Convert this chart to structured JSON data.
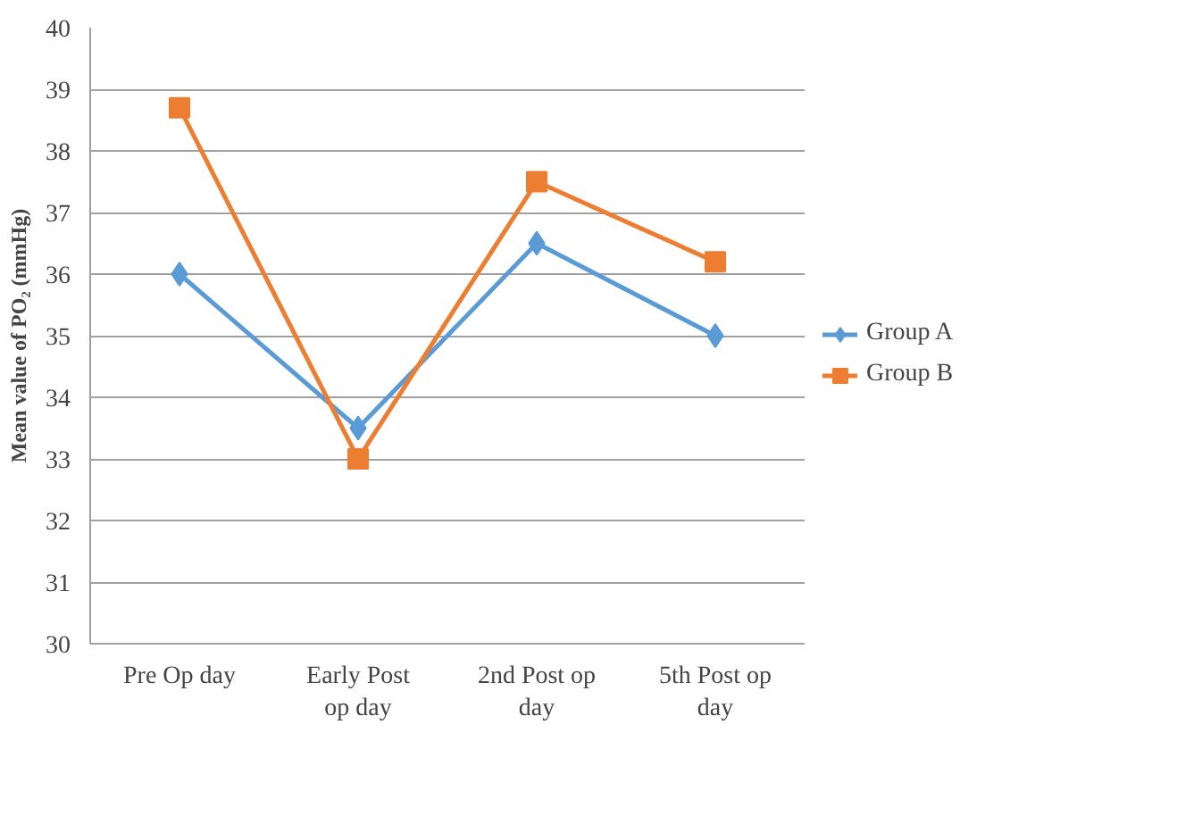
{
  "chart_data": {
    "type": "line",
    "ylabel": "Mean value of PO₂ (mmHg)",
    "categories": [
      "Pre Op day",
      "Early Post op day",
      "2nd Post op day",
      "5th Post op day"
    ],
    "series": [
      {
        "name": "Group A",
        "color": "#5b9bd5",
        "marker": "diamond",
        "values": [
          36,
          33.5,
          36.5,
          35
        ]
      },
      {
        "name": "Group B",
        "color": "#ed7d31",
        "marker": "square",
        "values": [
          38.7,
          33,
          37.5,
          36.2
        ]
      }
    ],
    "ylim": [
      30,
      40
    ],
    "yticks": [
      30,
      31,
      32,
      33,
      34,
      35,
      36,
      37,
      38,
      39,
      40
    ],
    "grid": "y",
    "legend": "right"
  }
}
